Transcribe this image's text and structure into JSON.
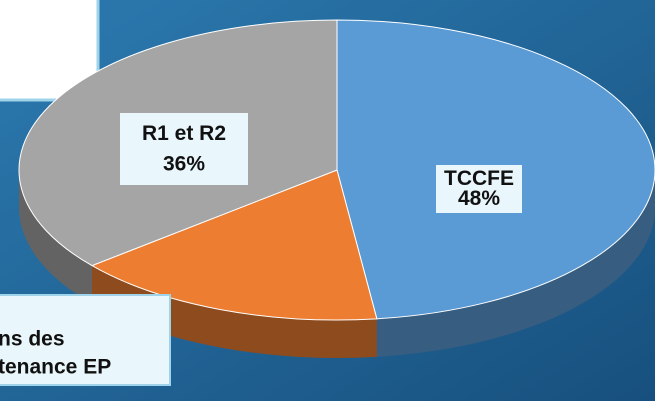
{
  "chart_data": {
    "type": "pie",
    "categories": [
      "TCCFE",
      null,
      "R1 et R2"
    ],
    "values": [
      48,
      16,
      36
    ],
    "value_labels": [
      "48%",
      null,
      "36%"
    ],
    "colors": [
      "#5b9bd5",
      "#ed7d31",
      "#a5a5a5"
    ],
    "annotations": [
      "ns des",
      "tenance EP"
    ]
  }
}
